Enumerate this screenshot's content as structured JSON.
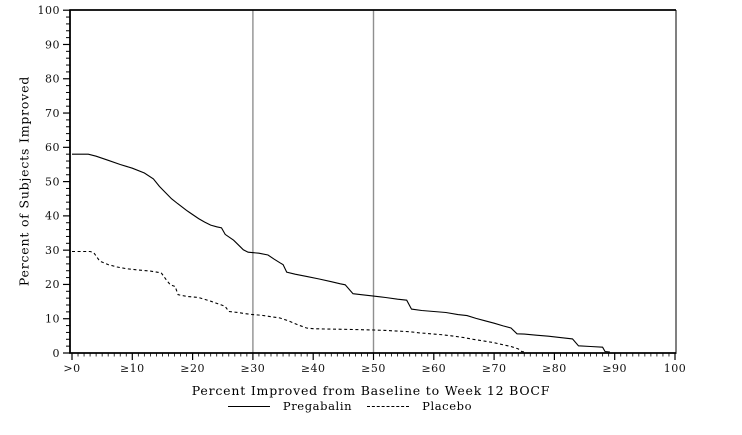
{
  "chart_data": {
    "type": "line",
    "title": "",
    "xlabel": "Percent Improved from Baseline to Week 12 BOCF",
    "ylabel": "Percent of Subjects Improved",
    "xlim": [
      0,
      100
    ],
    "ylim": [
      0,
      100
    ],
    "grid": false,
    "legend_position": "bottom",
    "x_tick_values": [
      0,
      10,
      20,
      30,
      40,
      50,
      60,
      70,
      80,
      90,
      100
    ],
    "x_tick_labels": [
      ">0",
      "≥10",
      "≥20",
      "≥30",
      "≥40",
      "≥50",
      "≥60",
      "≥70",
      "≥80",
      "≥90",
      "100"
    ],
    "y_tick_values": [
      0,
      10,
      20,
      30,
      40,
      50,
      60,
      70,
      80,
      90,
      100
    ],
    "y_tick_labels": [
      "0",
      "10",
      "20",
      "30",
      "40",
      "50",
      "60",
      "70",
      "80",
      "90",
      "100"
    ],
    "x_minor_tick_step": 1,
    "y_minor_tick_step": 2,
    "reference_lines_x": [
      30,
      50
    ],
    "series": [
      {
        "name": "Pregabalin",
        "style": "solid",
        "points": [
          [
            0,
            58
          ],
          [
            2.7,
            58
          ],
          [
            4,
            57.4
          ],
          [
            6,
            56.2
          ],
          [
            8,
            55
          ],
          [
            10,
            53.9
          ],
          [
            12,
            52.5
          ],
          [
            13.5,
            50.8
          ],
          [
            14.5,
            48.6
          ],
          [
            15.5,
            46.8
          ],
          [
            16.5,
            45
          ],
          [
            17.5,
            43.6
          ],
          [
            19,
            41.6
          ],
          [
            19.5,
            41
          ],
          [
            21,
            39.2
          ],
          [
            22,
            38.2
          ],
          [
            23,
            37.3
          ],
          [
            24,
            36.8
          ],
          [
            24.8,
            36.5
          ],
          [
            25.4,
            34.6
          ],
          [
            26.8,
            32.9
          ],
          [
            27.9,
            31
          ],
          [
            28.4,
            30.1
          ],
          [
            29.2,
            29.4
          ],
          [
            31,
            29.1
          ],
          [
            32.5,
            28.6
          ],
          [
            33.5,
            27.4
          ],
          [
            34.5,
            26.3
          ],
          [
            35,
            25.8
          ],
          [
            35.6,
            23.6
          ],
          [
            37,
            23
          ],
          [
            39,
            22.3
          ],
          [
            41,
            21.6
          ],
          [
            43,
            20.8
          ],
          [
            44.5,
            20.2
          ],
          [
            45.3,
            19.9
          ],
          [
            46.6,
            17.3
          ],
          [
            48,
            17
          ],
          [
            50,
            16.6
          ],
          [
            52,
            16.2
          ],
          [
            54,
            15.7
          ],
          [
            55.5,
            15.4
          ],
          [
            56.3,
            12.8
          ],
          [
            58,
            12.4
          ],
          [
            60,
            12.1
          ],
          [
            62,
            11.8
          ],
          [
            64,
            11.2
          ],
          [
            65.5,
            10.9
          ],
          [
            67,
            10.1
          ],
          [
            68.5,
            9.4
          ],
          [
            70,
            8.7
          ],
          [
            71.5,
            7.9
          ],
          [
            72.8,
            7.3
          ],
          [
            73.8,
            5.6
          ],
          [
            75,
            5.5
          ],
          [
            77,
            5.2
          ],
          [
            79,
            4.9
          ],
          [
            81,
            4.5
          ],
          [
            83,
            4.1
          ],
          [
            84,
            2.1
          ],
          [
            86,
            1.9
          ],
          [
            88,
            1.7
          ],
          [
            88.4,
            0.4
          ],
          [
            89.2,
            0.3
          ]
        ]
      },
      {
        "name": "Placebo",
        "style": "dashed",
        "points": [
          [
            0,
            29.6
          ],
          [
            3,
            29.6
          ],
          [
            3.6,
            29.3
          ],
          [
            4.6,
            26.8
          ],
          [
            6,
            25.8
          ],
          [
            7.5,
            25.1
          ],
          [
            9,
            24.6
          ],
          [
            11,
            24.2
          ],
          [
            13,
            23.9
          ],
          [
            14.8,
            23.4
          ],
          [
            15.6,
            21.4
          ],
          [
            16.3,
            19.9
          ],
          [
            17.1,
            19.4
          ],
          [
            17.6,
            17
          ],
          [
            19,
            16.5
          ],
          [
            21,
            16.2
          ],
          [
            23,
            15.1
          ],
          [
            24.8,
            14
          ],
          [
            25.4,
            13.6
          ],
          [
            26,
            12.1
          ],
          [
            27.5,
            11.8
          ],
          [
            29.5,
            11.3
          ],
          [
            31.5,
            11
          ],
          [
            33,
            10.6
          ],
          [
            34.5,
            10.2
          ],
          [
            36,
            9.3
          ],
          [
            37.5,
            8.2
          ],
          [
            38.9,
            7.3
          ],
          [
            40,
            7.1
          ],
          [
            42,
            7
          ],
          [
            45,
            6.9
          ],
          [
            48,
            6.8
          ],
          [
            50,
            6.7
          ],
          [
            52,
            6.6
          ],
          [
            54,
            6.4
          ],
          [
            56,
            6.2
          ],
          [
            57.5,
            5.9
          ],
          [
            59.5,
            5.6
          ],
          [
            61.5,
            5.3
          ],
          [
            63,
            5
          ],
          [
            65,
            4.5
          ],
          [
            66.5,
            4
          ],
          [
            68,
            3.6
          ],
          [
            70,
            3
          ],
          [
            71.5,
            2.4
          ],
          [
            72.8,
            1.9
          ],
          [
            74,
            1.2
          ],
          [
            74.6,
            0.4
          ],
          [
            75.2,
            0.3
          ]
        ]
      }
    ],
    "colors": {
      "series": "#000000",
      "reference_line": "#8f8f8f",
      "frame": "#000000",
      "background": "#ffffff"
    }
  }
}
